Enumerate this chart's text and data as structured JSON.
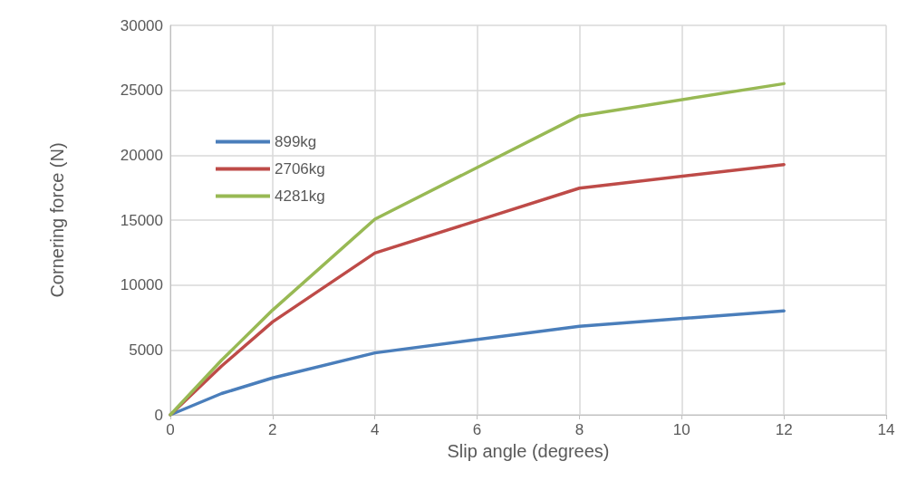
{
  "chart_data": {
    "type": "line",
    "xlabel": "Slip angle (degrees)",
    "ylabel": "Cornering force (N)",
    "x": [
      0,
      1,
      2,
      4,
      8,
      12
    ],
    "series": [
      {
        "name": "899kg",
        "color": "#4a7ebb",
        "values": [
          0,
          1640,
          2840,
          4770,
          6820,
          8010
        ]
      },
      {
        "name": "2706kg",
        "color": "#be4b48",
        "values": [
          0,
          3750,
          7160,
          12460,
          17460,
          19280
        ]
      },
      {
        "name": "4281kg",
        "color": "#98b954",
        "values": [
          0,
          4200,
          8070,
          15070,
          23030,
          25510
        ]
      }
    ],
    "xlim": [
      0,
      14
    ],
    "xticks": [
      0,
      2,
      4,
      6,
      8,
      10,
      12,
      14
    ],
    "ylim": [
      0,
      30000
    ],
    "yticks": [
      0,
      5000,
      10000,
      15000,
      20000,
      25000,
      30000
    ],
    "grid": true,
    "legend": "top left",
    "marker": "none",
    "line_style": "solid"
  }
}
